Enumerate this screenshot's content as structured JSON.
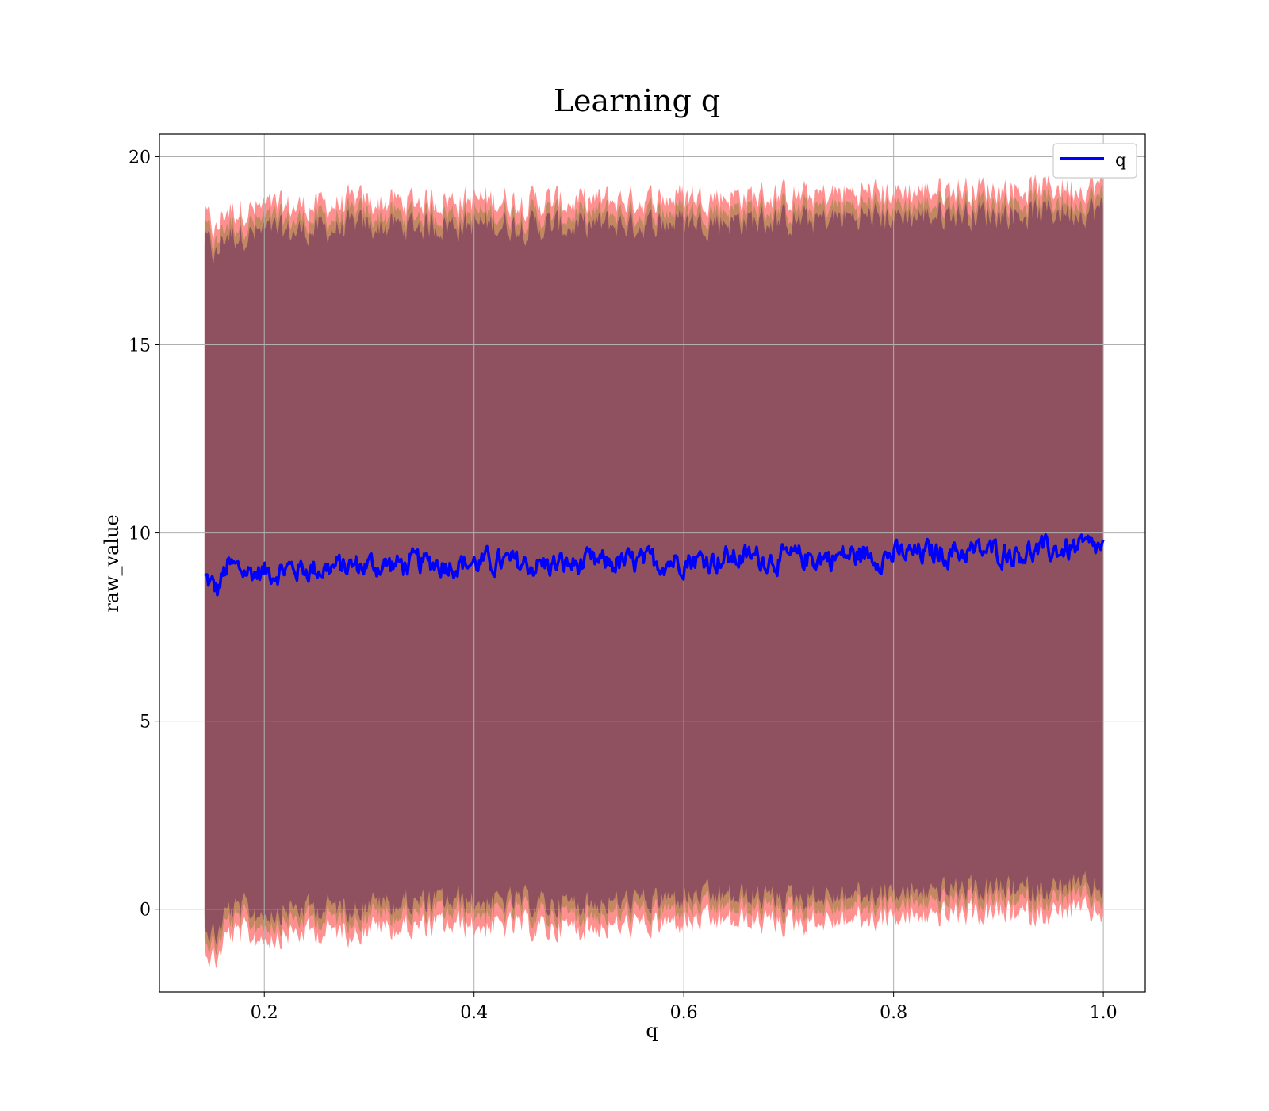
{
  "chart_data": {
    "type": "line",
    "title": "Learning q",
    "xlabel": "q",
    "ylabel": "raw_value",
    "xlim": [
      0.1,
      1.04
    ],
    "ylim": [
      -2.2,
      20.6
    ],
    "xticks": [
      0.2,
      0.4,
      0.6,
      0.8,
      1.0
    ],
    "xtick_labels": [
      "0.2",
      "0.4",
      "0.6",
      "0.8",
      "1.0"
    ],
    "yticks": [
      0,
      5,
      10,
      15,
      20
    ],
    "ytick_labels": [
      "0",
      "5",
      "10",
      "15",
      "20"
    ],
    "grid": true,
    "legend": {
      "placement": "top-right",
      "entries": [
        "q"
      ]
    },
    "colors": {
      "line": "#0000ff",
      "band_outer": "#ff6b6b",
      "band_mid": "#b8875a",
      "band_inner": "#8a4a60",
      "grid": "#b0b0b0"
    },
    "series": [
      {
        "name": "q",
        "x": [
          0.143,
          0.15,
          0.155,
          0.16,
          0.165,
          0.17,
          0.18,
          0.19,
          0.2,
          0.22,
          0.25,
          0.28,
          0.3,
          0.33,
          0.36,
          0.4,
          0.43,
          0.46,
          0.5,
          0.53,
          0.56,
          0.6,
          0.63,
          0.66,
          0.7,
          0.73,
          0.76,
          0.8,
          0.83,
          0.86,
          0.9,
          0.93,
          0.96,
          1.0
        ],
        "y": [
          8.8,
          8.6,
          8.45,
          8.8,
          9.1,
          9.05,
          9.0,
          8.95,
          8.95,
          9.05,
          9.05,
          9.1,
          9.15,
          9.15,
          9.2,
          9.2,
          9.2,
          9.15,
          9.15,
          9.2,
          9.2,
          9.3,
          9.3,
          9.35,
          9.3,
          9.35,
          9.4,
          9.4,
          9.45,
          9.5,
          9.5,
          9.5,
          9.55,
          9.6
        ],
        "upper_band": [
          18.1,
          17.8,
          17.6,
          18.1,
          18.3,
          18.2,
          18.3,
          18.2,
          18.3,
          18.3,
          18.35,
          18.4,
          18.45,
          18.45,
          18.5,
          18.5,
          18.5,
          18.45,
          18.45,
          18.5,
          18.5,
          18.6,
          18.6,
          18.6,
          18.6,
          18.6,
          18.7,
          18.7,
          18.75,
          18.8,
          18.8,
          18.8,
          18.85,
          18.9
        ],
        "lower_band": [
          -0.6,
          -0.9,
          -1.0,
          -0.6,
          -0.3,
          -0.35,
          -0.3,
          -0.4,
          -0.35,
          -0.3,
          -0.25,
          -0.2,
          -0.15,
          -0.15,
          -0.1,
          -0.1,
          -0.1,
          -0.15,
          -0.15,
          -0.1,
          -0.1,
          0.0,
          0.0,
          0.05,
          0.0,
          0.05,
          0.1,
          0.1,
          0.15,
          0.2,
          0.2,
          0.2,
          0.25,
          0.3
        ]
      }
    ]
  }
}
